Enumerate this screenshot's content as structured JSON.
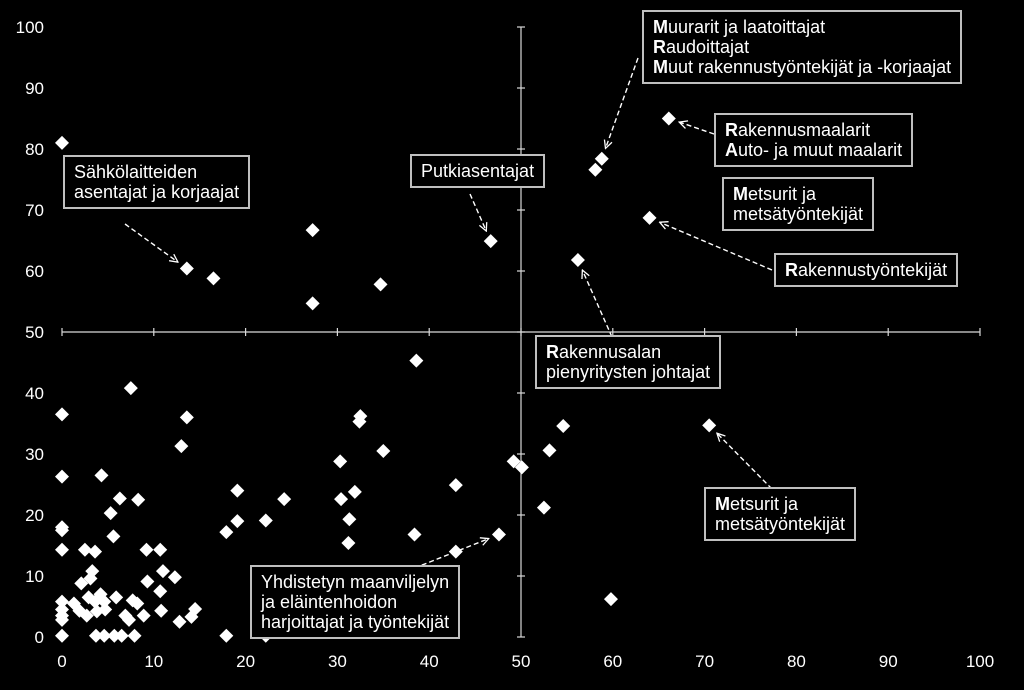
{
  "chart_data": {
    "type": "scatter",
    "xlim": [
      0,
      100
    ],
    "ylim": [
      0,
      100
    ],
    "x_ticks": [
      0,
      10,
      20,
      30,
      40,
      50,
      60,
      70,
      80,
      90,
      100
    ],
    "y_ticks": [
      0,
      10,
      20,
      30,
      40,
      50,
      60,
      70,
      80,
      90,
      100
    ],
    "grid": false,
    "points": [
      [
        0,
        81
      ],
      [
        0,
        36.5
      ],
      [
        0,
        26.3
      ],
      [
        0,
        18
      ],
      [
        0,
        17.5
      ],
      [
        0,
        14.3
      ],
      [
        0,
        5.8
      ],
      [
        0,
        4.5
      ],
      [
        0,
        3.5
      ],
      [
        0,
        2.8
      ],
      [
        0,
        0.2
      ],
      [
        1.3,
        5.5
      ],
      [
        1.9,
        4.3
      ],
      [
        2.1,
        8.8
      ],
      [
        2.5,
        14.3
      ],
      [
        2.7,
        3.5
      ],
      [
        2.9,
        6.5
      ],
      [
        3.1,
        9.6
      ],
      [
        3.3,
        10.8
      ],
      [
        3.6,
        5.8
      ],
      [
        3.6,
        14
      ],
      [
        3.7,
        0.2
      ],
      [
        3.8,
        4.2
      ],
      [
        4.2,
        7
      ],
      [
        4.3,
        26.5
      ],
      [
        4.6,
        5.8
      ],
      [
        4.6,
        0.2
      ],
      [
        4.7,
        4.5
      ],
      [
        5.3,
        20.3
      ],
      [
        5.6,
        16.5
      ],
      [
        5.7,
        0.2
      ],
      [
        5.9,
        6.5
      ],
      [
        6.3,
        22.7
      ],
      [
        6.5,
        0.2
      ],
      [
        6.9,
        3.5
      ],
      [
        7.3,
        2.8
      ],
      [
        7.5,
        40.8
      ],
      [
        7.7,
        6
      ],
      [
        7.9,
        0.2
      ],
      [
        8.2,
        5.5
      ],
      [
        8.3,
        22.5
      ],
      [
        8.9,
        3.5
      ],
      [
        9.2,
        14.3
      ],
      [
        9.3,
        9.1
      ],
      [
        10.7,
        14.3
      ],
      [
        10.7,
        7.5
      ],
      [
        10.8,
        4.3
      ],
      [
        11,
        10.8
      ],
      [
        12.3,
        9.8
      ],
      [
        12.8,
        2.5
      ],
      [
        13,
        31.3
      ],
      [
        13.6,
        36
      ],
      [
        14.1,
        3.3
      ],
      [
        14.5,
        4.6
      ],
      [
        17.9,
        17.2
      ],
      [
        17.9,
        0.2
      ],
      [
        19.1,
        24
      ],
      [
        19.1,
        19
      ],
      [
        22.2,
        19.1
      ],
      [
        22.2,
        0.2
      ],
      [
        24.2,
        22.6
      ],
      [
        30.3,
        28.8
      ],
      [
        30.4,
        22.6
      ],
      [
        31.2,
        15.4
      ],
      [
        31.3,
        19.3
      ],
      [
        31.9,
        23.8
      ],
      [
        32.4,
        35.3
      ],
      [
        32.5,
        36.2
      ],
      [
        35,
        30.5
      ],
      [
        37.9,
        9.8
      ],
      [
        38.4,
        16.8
      ],
      [
        38.6,
        45.3
      ],
      [
        42.9,
        24.9
      ],
      [
        42.9,
        14
      ],
      [
        47.6,
        16.8
      ],
      [
        49.2,
        28.8
      ],
      [
        50.1,
        27.8
      ],
      [
        52.5,
        21.2
      ],
      [
        53.1,
        30.6
      ],
      [
        54.6,
        34.6
      ],
      [
        59.8,
        6.2
      ],
      [
        70.5,
        34.7
      ],
      [
        13.6,
        60.4
      ],
      [
        16.5,
        58.8
      ],
      [
        27.3,
        66.7
      ],
      [
        27.3,
        54.7
      ],
      [
        34.7,
        57.8
      ],
      [
        46.7,
        64.9
      ],
      [
        58.1,
        76.6
      ],
      [
        58.8,
        78.4
      ],
      [
        64,
        68.7
      ],
      [
        56.2,
        61.8
      ],
      [
        66.1,
        85
      ]
    ],
    "annotations": [
      {
        "lines": [
          [
            "",
            "Sähkölaitteiden"
          ],
          [
            "",
            "asentajat ja korjaajat"
          ]
        ],
        "target": [
          13.6,
          60.4
        ]
      },
      {
        "lines": [
          [
            "",
            "Putkiasentajat"
          ]
        ],
        "target": [
          46.7,
          64.9
        ]
      },
      {
        "lines": [
          [
            "M",
            "uurarit ja laatoittajat"
          ],
          [
            "R",
            "audoittajat"
          ],
          [
            "M",
            "uut rakennustyöntekijät ja -korjaajat"
          ]
        ],
        "target": [
          58.8,
          78.4
        ]
      },
      {
        "lines": [
          [
            "R",
            "akennusmaalarit"
          ],
          [
            "A",
            "uto- ja muut maalarit"
          ]
        ],
        "target": [
          66.1,
          85
        ]
      },
      {
        "lines": [
          [
            "M",
            "etsurit ja"
          ],
          [
            "",
            "metsätyöntekijät"
          ]
        ],
        "target": null
      },
      {
        "lines": [
          [
            "R",
            "akennustyöntekijät"
          ]
        ],
        "target": [
          64,
          68.7
        ]
      },
      {
        "lines": [
          [
            "R",
            "akennusalan"
          ],
          [
            "",
            "pienyritysten johtajat"
          ]
        ],
        "target": [
          56.2,
          61.8
        ]
      },
      {
        "lines": [
          [
            "M",
            "etsurit ja"
          ],
          [
            "",
            "metsätyöntekijät"
          ]
        ],
        "target": [
          70.5,
          34.7
        ]
      },
      {
        "lines": [
          [
            "",
            "Yhdistetyn maanviljelyn"
          ],
          [
            "",
            "ja eläintenhoidon"
          ],
          [
            "",
            "harjoittajat ja työntekijät"
          ]
        ],
        "target": [
          47.6,
          16.8
        ]
      }
    ]
  }
}
